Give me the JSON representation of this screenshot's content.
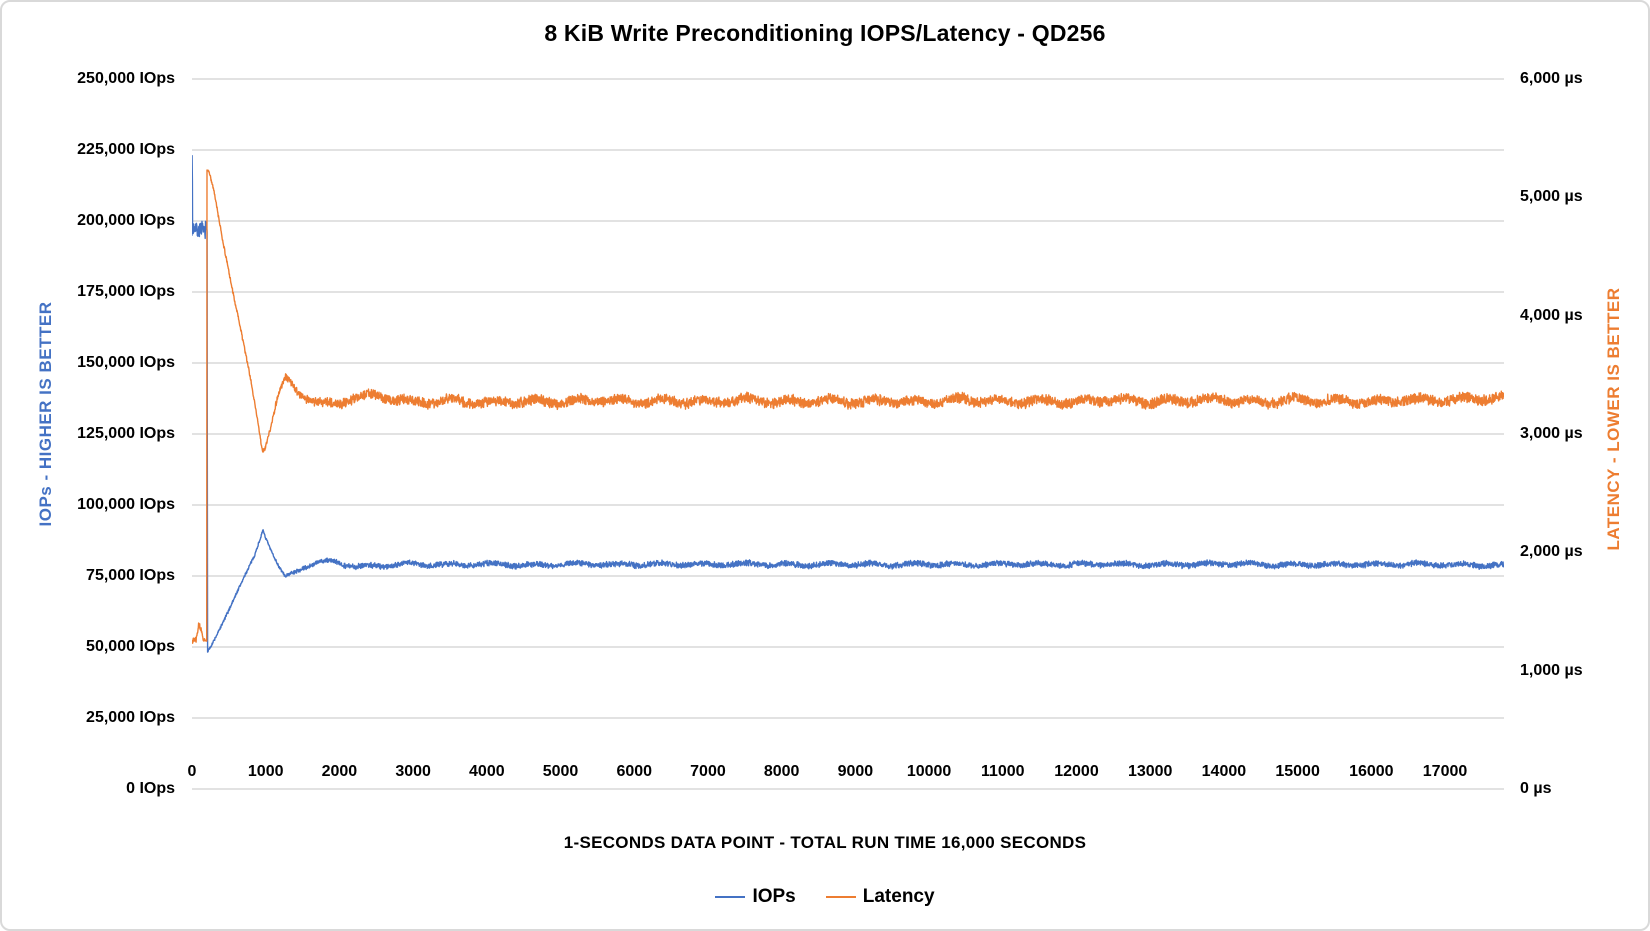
{
  "title": "8 KiB Write Preconditioning IOPS/Latency - QD256",
  "axes": {
    "left": {
      "title": "IOPs - HIGHER IS BETTER",
      "color": "#4472C4",
      "tick_labels": [
        "250,000 IOps",
        "225,000 IOps",
        "200,000 IOps",
        "175,000 IOps",
        "150,000 IOps",
        "125,000 IOps",
        "100,000 IOps",
        "75,000 IOps",
        "50,000 IOps",
        "25,000 IOps",
        "0 IOps"
      ]
    },
    "right": {
      "title": "LATENCY - LOWER IS BETTER",
      "color": "#ED7D31",
      "tick_labels": [
        "6,000 µs",
        "5,000 µs",
        "4,000 µs",
        "3,000 µs",
        "2,000 µs",
        "1,000 µs",
        "0 µs"
      ]
    },
    "x": {
      "title": "1-SECONDS DATA POINT - TOTAL RUN TIME 16,000 SECONDS",
      "tick_labels": [
        "0",
        "1000",
        "2000",
        "3000",
        "4000",
        "5000",
        "6000",
        "7000",
        "8000",
        "9000",
        "10000",
        "11000",
        "12000",
        "13000",
        "14000",
        "15000",
        "16000",
        "17000"
      ]
    }
  },
  "legend": {
    "items": [
      {
        "label": "IOPs",
        "color": "#4472C4"
      },
      {
        "label": "Latency",
        "color": "#ED7D31"
      }
    ]
  },
  "colors": {
    "iops_line": "#4472C4",
    "latency_line": "#ED7D31",
    "gridline": "#D9D9D9",
    "text": "#000000",
    "card_border": "#D9D9D9"
  },
  "chart_data": {
    "type": "line",
    "title": "8 KiB Write Preconditioning IOPS/Latency - QD256",
    "xlabel": "1-SECONDS DATA POINT - TOTAL RUN TIME 16,000 SECONDS",
    "grid": "horizontal-only",
    "legend_position": "bottom-center",
    "x_range": [
      0,
      17800
    ],
    "x_tick_values": [
      0,
      1000,
      2000,
      3000,
      4000,
      5000,
      6000,
      7000,
      8000,
      9000,
      10000,
      11000,
      12000,
      13000,
      14000,
      15000,
      16000,
      17000
    ],
    "left_axis": {
      "label": "IOPs - HIGHER IS BETTER",
      "unit": "IOps",
      "range": [
        0,
        250000
      ],
      "tick_step": 25000
    },
    "right_axis": {
      "label": "LATENCY - LOWER IS BETTER",
      "unit": "µs",
      "range": [
        0,
        6000
      ],
      "tick_step": 1000
    },
    "series": [
      {
        "name": "IOPs",
        "axis": "left",
        "color": "#4472C4",
        "seed": 7,
        "summary": "~197,000 IOPs (initial spike ~223,000) for first ~200 s; vertical drop to ~48,000; linear ramp to ~91,300 peak at ~960 s; dip to ~74,700 at ~1,265 s; steady ~79,000 ±1,000 through ~17,800 s",
        "keyframes": [
          [
            0,
            197000,
            3000
          ],
          [
            2,
            223000,
            0
          ],
          [
            5,
            214000,
            0
          ],
          [
            8,
            196000,
            3200
          ],
          [
            40,
            197500,
            3200
          ],
          [
            80,
            195000,
            3200
          ],
          [
            120,
            196500,
            3200
          ],
          [
            160,
            195200,
            3200
          ],
          [
            195,
            197500,
            3000
          ],
          [
            205,
            196000,
            0
          ],
          [
            211,
            48200,
            0
          ],
          [
            218,
            48500,
            400
          ],
          [
            300,
            52500,
            500
          ],
          [
            500,
            63000,
            600
          ],
          [
            700,
            74000,
            600
          ],
          [
            850,
            82500,
            600
          ],
          [
            940,
            89500,
            500
          ],
          [
            965,
            91300,
            300
          ],
          [
            1000,
            88500,
            500
          ],
          [
            1080,
            83500,
            600
          ],
          [
            1180,
            78000,
            600
          ],
          [
            1265,
            74700,
            500
          ],
          [
            1320,
            75600,
            600
          ],
          [
            1450,
            77300,
            800
          ],
          [
            1600,
            78800,
            900
          ],
          [
            1750,
            79800,
            900
          ],
          [
            1900,
            80400,
            900
          ],
          [
            2050,
            79300,
            1000
          ],
          [
            2200,
            78300,
            1100
          ],
          [
            2500,
            78600,
            1100
          ],
          [
            2900,
            79300,
            1100
          ],
          [
            3400,
            79000,
            1100
          ],
          [
            4000,
            79200,
            1100
          ],
          [
            4600,
            78800,
            1100
          ],
          [
            5200,
            79300,
            1100
          ],
          [
            5800,
            79000,
            1100
          ],
          [
            6400,
            79200,
            1100
          ],
          [
            7000,
            79000,
            1100
          ],
          [
            7600,
            79300,
            1100
          ],
          [
            8200,
            78900,
            1100
          ],
          [
            8800,
            79200,
            1100
          ],
          [
            9400,
            79000,
            1100
          ],
          [
            10000,
            79200,
            1100
          ],
          [
            10600,
            78900,
            1100
          ],
          [
            11200,
            79300,
            1100
          ],
          [
            11800,
            79000,
            1100
          ],
          [
            12400,
            79200,
            1100
          ],
          [
            13000,
            78900,
            1100
          ],
          [
            13600,
            79100,
            1100
          ],
          [
            14200,
            79300,
            1100
          ],
          [
            14800,
            78900,
            1100
          ],
          [
            15400,
            79100,
            1100
          ],
          [
            16000,
            79000,
            1100
          ],
          [
            16600,
            79200,
            1100
          ],
          [
            17200,
            78900,
            1100
          ],
          [
            17800,
            78700,
            1100
          ]
        ]
      },
      {
        "name": "Latency",
        "axis": "right",
        "color": "#ED7D31",
        "seed": 13,
        "summary": "~1,260 µs for first ~200 s; vertical jump to ~5,230 µs; decay to ~2,860 µs at ~955 s; rebound to ~3,470 µs at ~1,270 s; steady ~3,270 µs ±50 through ~17,800 s",
        "keyframes": [
          [
            0,
            1255,
            30
          ],
          [
            55,
            1260,
            30
          ],
          [
            90,
            1380,
            25
          ],
          [
            120,
            1345,
            25
          ],
          [
            150,
            1260,
            20
          ],
          [
            200,
            1250,
            0
          ],
          [
            204,
            5230,
            0
          ],
          [
            230,
            5220,
            10
          ],
          [
            300,
            5050,
            15
          ],
          [
            420,
            4630,
            15
          ],
          [
            560,
            4180,
            18
          ],
          [
            700,
            3760,
            20
          ],
          [
            820,
            3380,
            20
          ],
          [
            900,
            3080,
            18
          ],
          [
            955,
            2860,
            12
          ],
          [
            990,
            2880,
            20
          ],
          [
            1060,
            3040,
            25
          ],
          [
            1150,
            3280,
            28
          ],
          [
            1230,
            3420,
            30
          ],
          [
            1270,
            3465,
            32
          ],
          [
            1340,
            3430,
            36
          ],
          [
            1450,
            3350,
            38
          ],
          [
            1600,
            3290,
            40
          ],
          [
            1800,
            3250,
            42
          ],
          [
            2000,
            3260,
            44
          ],
          [
            2200,
            3310,
            44
          ],
          [
            2450,
            3330,
            44
          ],
          [
            2700,
            3300,
            46
          ],
          [
            3000,
            3270,
            46
          ],
          [
            3500,
            3280,
            48
          ],
          [
            4000,
            3260,
            48
          ],
          [
            4500,
            3280,
            48
          ],
          [
            5000,
            3270,
            48
          ],
          [
            5500,
            3290,
            48
          ],
          [
            6000,
            3270,
            48
          ],
          [
            6500,
            3280,
            48
          ],
          [
            7000,
            3270,
            48
          ],
          [
            7500,
            3290,
            48
          ],
          [
            8000,
            3270,
            48
          ],
          [
            8500,
            3280,
            48
          ],
          [
            9000,
            3270,
            48
          ],
          [
            9500,
            3280,
            48
          ],
          [
            10000,
            3270,
            48
          ],
          [
            10500,
            3290,
            48
          ],
          [
            11000,
            3270,
            48
          ],
          [
            11500,
            3280,
            48
          ],
          [
            12000,
            3270,
            48
          ],
          [
            12500,
            3290,
            48
          ],
          [
            13000,
            3270,
            48
          ],
          [
            13500,
            3280,
            48
          ],
          [
            14000,
            3290,
            48
          ],
          [
            14500,
            3270,
            48
          ],
          [
            15000,
            3290,
            48
          ],
          [
            15500,
            3280,
            48
          ],
          [
            16000,
            3270,
            48
          ],
          [
            16500,
            3290,
            48
          ],
          [
            17000,
            3280,
            48
          ],
          [
            17400,
            3300,
            48
          ],
          [
            17800,
            3310,
            48
          ]
        ]
      }
    ]
  }
}
